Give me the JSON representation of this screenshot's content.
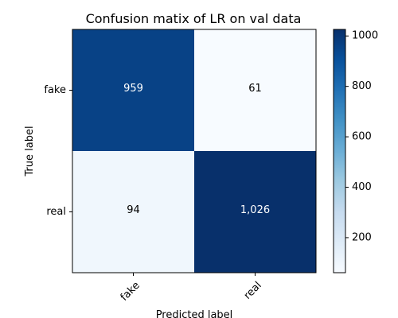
{
  "chart_data": {
    "type": "heatmap",
    "title": "Confusion matix of LR on val data",
    "xlabel": "Predicted label",
    "ylabel": "True label",
    "x_categories": [
      "fake",
      "real"
    ],
    "y_categories": [
      "fake",
      "real"
    ],
    "values": [
      [
        959,
        61
      ],
      [
        94,
        1026
      ]
    ],
    "cell_labels": [
      [
        "959",
        "61"
      ],
      [
        "94",
        "1,026"
      ]
    ],
    "colormap": "Blues",
    "color_range": [
      61,
      1026
    ],
    "colorbar_ticks": [
      "200",
      "400",
      "600",
      "800",
      "1000"
    ],
    "colorbar_tick_values": [
      200,
      400,
      600,
      800,
      1000
    ],
    "grid": false
  }
}
